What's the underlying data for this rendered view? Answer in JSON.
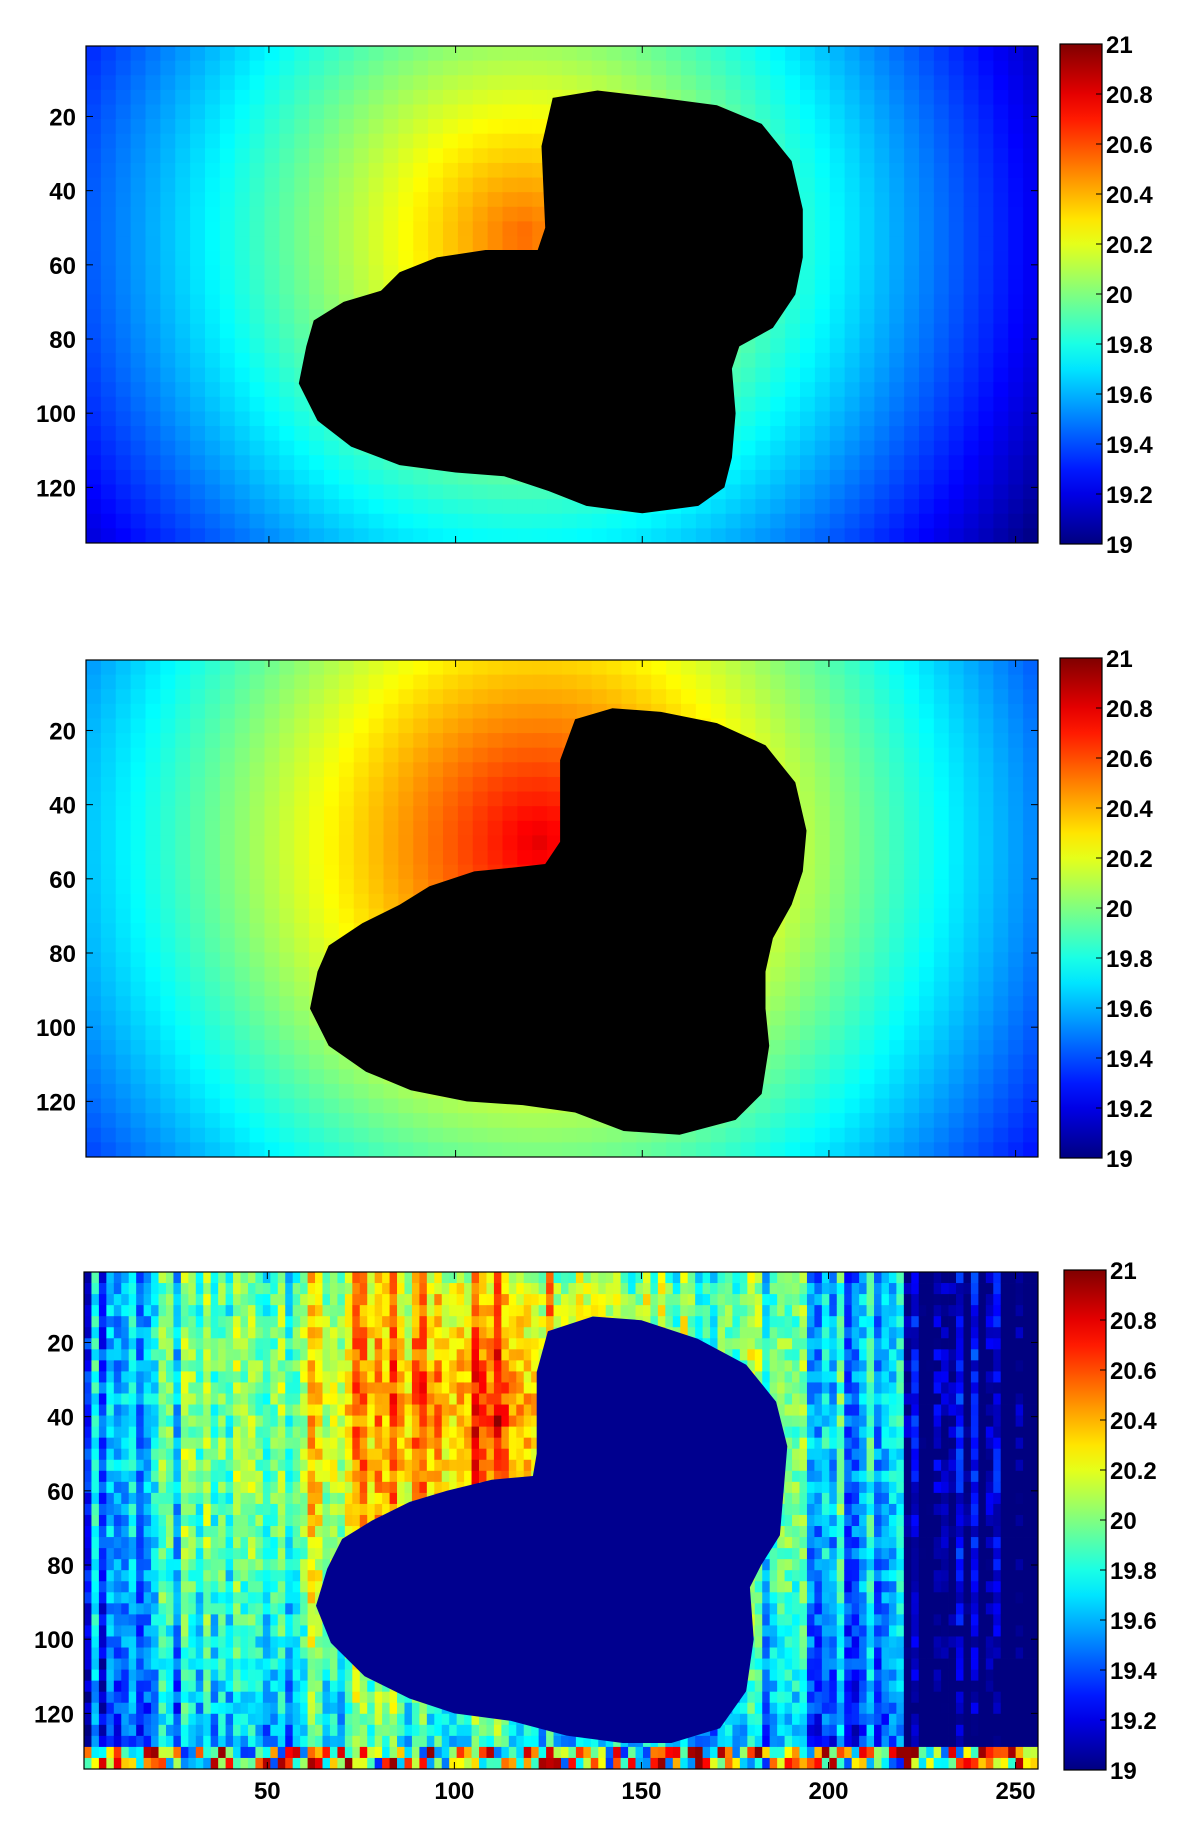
{
  "figure": {
    "panels": 3,
    "colormap": "jet",
    "mask_color_panels_1_2": "#000000",
    "mask_color_panel_3": "#00008f"
  },
  "chart_data": [
    {
      "type": "heatmap",
      "title": "",
      "xlabel": "",
      "ylabel": "",
      "xlim": [
        1,
        256
      ],
      "ylim": [
        1,
        135
      ],
      "x_ticks": [],
      "y_ticks": [
        20,
        40,
        60,
        80,
        100,
        120
      ],
      "colorbar": {
        "min": 19,
        "max": 21,
        "ticks": [
          "19",
          "19.2",
          "19.4",
          "19.6",
          "19.8",
          "20",
          "20.2",
          "20.4",
          "20.6",
          "20.8",
          "21"
        ]
      },
      "field": "smooth",
      "peak": {
        "x": 118,
        "y": 52,
        "value": 20.55
      },
      "masked_region": "black"
    },
    {
      "type": "heatmap",
      "title": "",
      "xlabel": "",
      "ylabel": "",
      "xlim": [
        1,
        256
      ],
      "ylim": [
        1,
        135
      ],
      "x_ticks": [],
      "y_ticks": [
        20,
        40,
        60,
        80,
        100,
        120
      ],
      "colorbar": {
        "min": 19,
        "max": 21,
        "ticks": [
          "19",
          "19.2",
          "19.4",
          "19.6",
          "19.8",
          "20",
          "20.2",
          "20.4",
          "20.6",
          "20.8",
          "21"
        ]
      },
      "field": "smooth",
      "peak": {
        "x": 122,
        "y": 50,
        "value": 20.8
      },
      "masked_region": "black"
    },
    {
      "type": "heatmap",
      "title": "",
      "xlabel": "",
      "ylabel": "",
      "xlim": [
        1,
        256
      ],
      "ylim": [
        1,
        135
      ],
      "x_ticks": [
        "50",
        "100",
        "150",
        "200",
        "250"
      ],
      "y_ticks": [
        20,
        40,
        60,
        80,
        100,
        120
      ],
      "colorbar": {
        "min": 19,
        "max": 21,
        "ticks": [
          "19",
          "19.2",
          "19.4",
          "19.6",
          "19.8",
          "20",
          "20.2",
          "20.4",
          "20.6",
          "20.8",
          "21"
        ]
      },
      "field": "noisy",
      "peak": {
        "x": 110,
        "y": 40,
        "value": 20.7
      },
      "masked_region": "dark-blue"
    }
  ]
}
